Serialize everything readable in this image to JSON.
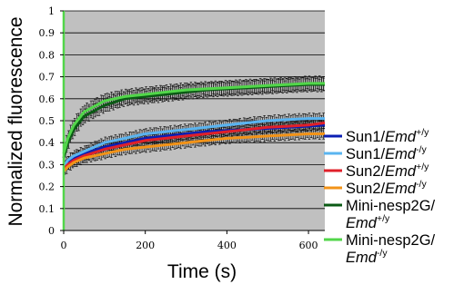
{
  "chart_data": {
    "type": "line",
    "xlabel": "Time (s)",
    "ylabel": "Normalized fluorescence",
    "xlim": [
      0,
      640
    ],
    "ylim": [
      0,
      1
    ],
    "xticks": [
      "0",
      "200",
      "400",
      "600"
    ],
    "yticks": [
      "0",
      "0.1",
      "0.2",
      "0.3",
      "0.4",
      "0.5",
      "0.6",
      "0.7",
      "0.8",
      "0.9",
      "1"
    ],
    "grid": true,
    "plot_background": "#c0c0c0",
    "legend_position": "right",
    "error_bars": true,
    "series": [
      {
        "name": "Sun1/Emd+/y",
        "base": "Sun1/",
        "italic": "Emd",
        "sup": "+/y",
        "color": "#0b1fb4",
        "x": [
          0,
          10,
          25,
          50,
          100,
          150,
          200,
          250,
          300,
          350,
          400,
          450,
          500,
          550,
          600,
          640
        ],
        "y": [
          0.28,
          0.31,
          0.33,
          0.35,
          0.38,
          0.4,
          0.42,
          0.43,
          0.44,
          0.45,
          0.455,
          0.46,
          0.465,
          0.47,
          0.475,
          0.48
        ]
      },
      {
        "name": "Sun1/Emd-/y",
        "base": "Sun1/",
        "italic": "Emd",
        "sup": "-/y",
        "color": "#5ab4f0",
        "x": [
          0,
          10,
          25,
          50,
          100,
          150,
          200,
          250,
          300,
          350,
          400,
          450,
          500,
          550,
          600,
          640
        ],
        "y": [
          0.29,
          0.32,
          0.34,
          0.36,
          0.4,
          0.42,
          0.44,
          0.45,
          0.46,
          0.47,
          0.48,
          0.49,
          0.5,
          0.505,
          0.51,
          0.51
        ]
      },
      {
        "name": "Sun2/Emd+/y",
        "base": "Sun2/",
        "italic": "Emd",
        "sup": "+/y",
        "color": "#e0202a",
        "x": [
          0,
          10,
          25,
          50,
          100,
          150,
          200,
          250,
          300,
          350,
          400,
          450,
          500,
          550,
          600,
          640
        ],
        "y": [
          0.28,
          0.3,
          0.32,
          0.34,
          0.37,
          0.39,
          0.41,
          0.42,
          0.43,
          0.44,
          0.45,
          0.46,
          0.47,
          0.475,
          0.48,
          0.49
        ]
      },
      {
        "name": "Sun2/Emd-/y",
        "base": "Sun2/",
        "italic": "Emd",
        "sup": "-/y",
        "color": "#f29318",
        "x": [
          0,
          10,
          25,
          50,
          100,
          150,
          200,
          250,
          300,
          350,
          400,
          450,
          500,
          550,
          600,
          640
        ],
        "y": [
          0.27,
          0.29,
          0.31,
          0.33,
          0.35,
          0.37,
          0.38,
          0.39,
          0.4,
          0.41,
          0.42,
          0.425,
          0.43,
          0.435,
          0.44,
          0.44
        ]
      },
      {
        "name": "Mini-nesp2G/Emd+/y",
        "base": "Mini-nesp2G/",
        "italic": "Emd",
        "sup": "+/y",
        "color": "#0a5a14",
        "x": [
          0,
          10,
          25,
          50,
          100,
          150,
          200,
          250,
          300,
          350,
          400,
          450,
          500,
          550,
          600,
          640
        ],
        "y": [
          0.33,
          0.4,
          0.46,
          0.52,
          0.57,
          0.6,
          0.61,
          0.62,
          0.63,
          0.64,
          0.645,
          0.65,
          0.655,
          0.66,
          0.665,
          0.665
        ]
      },
      {
        "name": "Mini-nesp2G/Emd-/y",
        "base": "Mini-nesp2G/",
        "italic": "Emd",
        "sup": "-/y",
        "color": "#52d64a",
        "x": [
          0,
          10,
          25,
          50,
          100,
          150,
          200,
          250,
          300,
          350,
          400,
          450,
          500,
          550,
          600,
          640
        ],
        "y": [
          0.35,
          0.42,
          0.48,
          0.54,
          0.59,
          0.61,
          0.62,
          0.63,
          0.64,
          0.645,
          0.65,
          0.655,
          0.66,
          0.665,
          0.67,
          0.67
        ]
      }
    ]
  }
}
